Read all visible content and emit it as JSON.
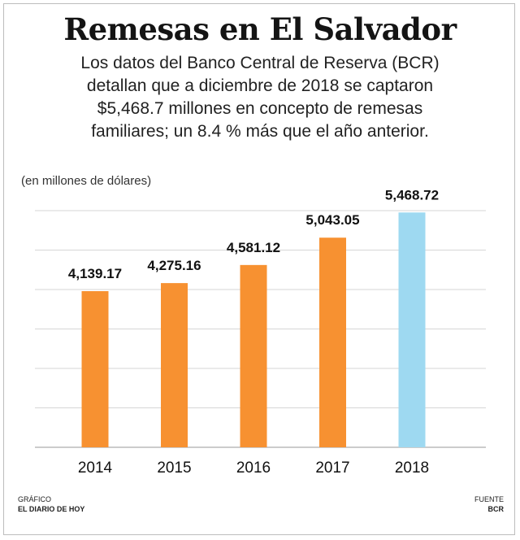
{
  "header": {
    "title": "Remesas en El Salvador",
    "subtitle": "Los datos del Banco Central de Reserva (BCR) detallan que a diciembre de 2018 se captaron $5,468.7 millones en concepto de remesas familiares; un 8.4 % más que el año anterior."
  },
  "chart_data": {
    "type": "bar",
    "title": "Remesas en El Salvador",
    "ylabel": "(en millones de dólares)",
    "categories": [
      "2014",
      "2015",
      "2016",
      "2017",
      "2018"
    ],
    "values": [
      4139.17,
      4275.16,
      4581.12,
      5043.05,
      5468.72
    ],
    "value_labels": [
      "4,139.17",
      "4,275.16",
      "4,581.12",
      "5,043.05",
      "5,468.72"
    ],
    "ylim": [
      1500,
      5500
    ],
    "grid": true,
    "colors": {
      "default": "#F79131",
      "highlight": "#9ED9F1",
      "grid": "#d6d6d6",
      "axis": "#9a9a9a"
    },
    "highlight_category": "2018"
  },
  "footer": {
    "credit_label": "GRÁFICO",
    "credit_value": "EL DIARIO DE HOY",
    "source_label": "FUENTE",
    "source_value": "BCR"
  }
}
